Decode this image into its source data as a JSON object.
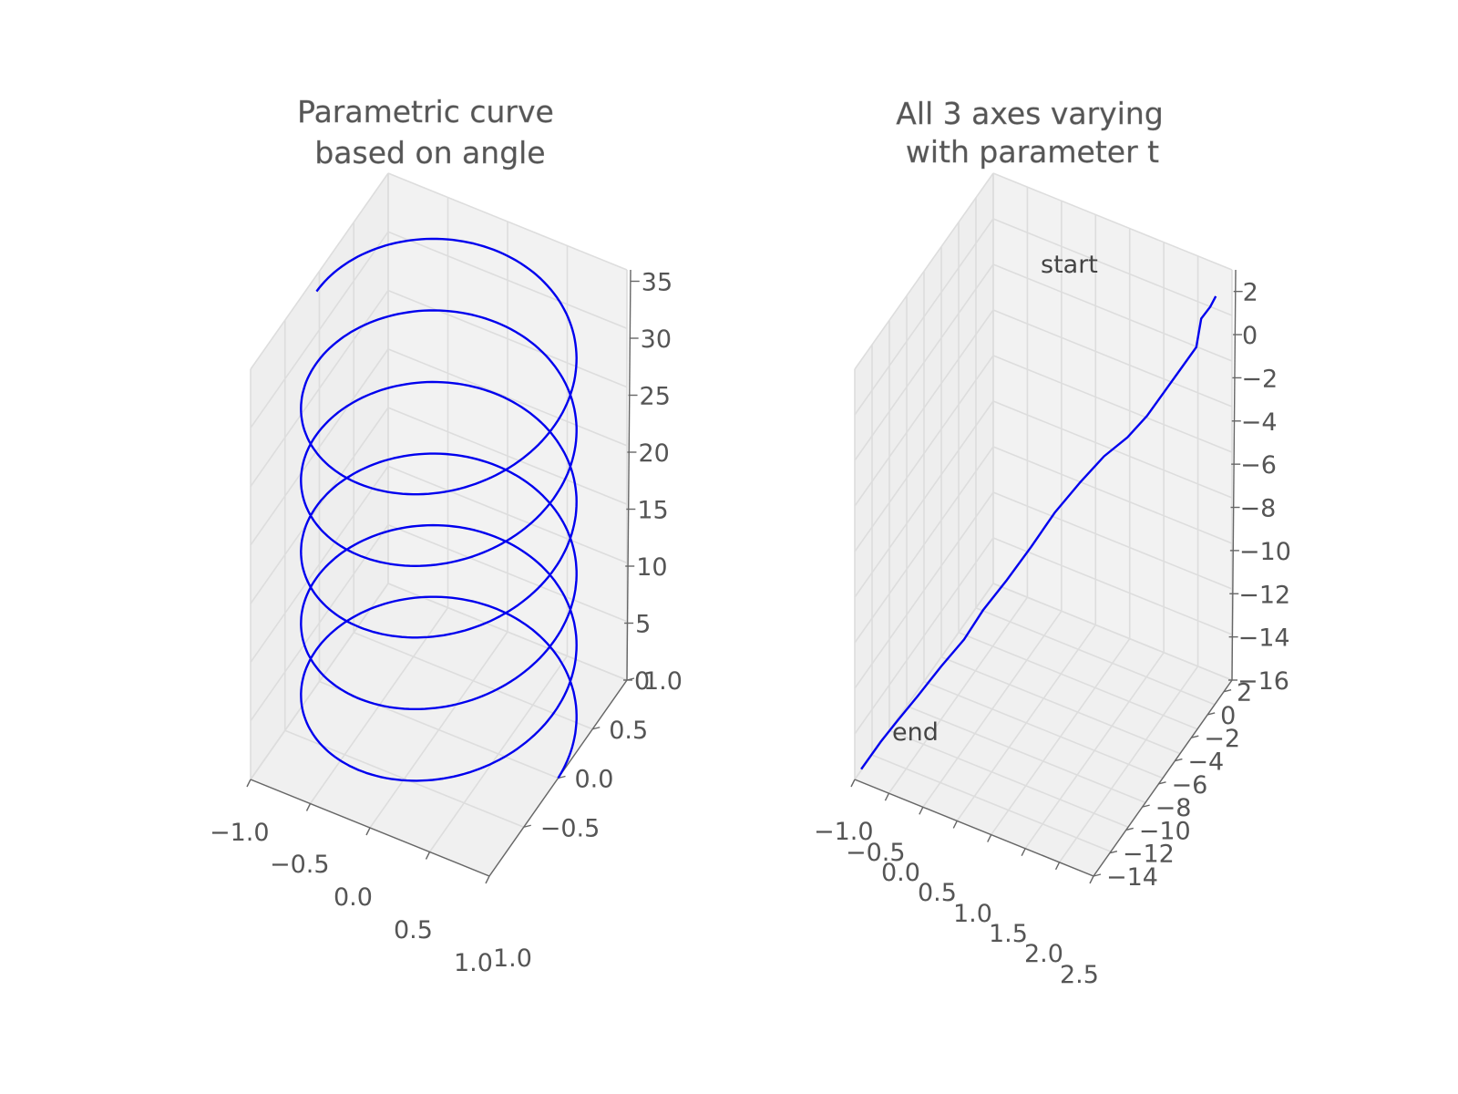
{
  "chart_data": [
    {
      "type": "line",
      "subtype": "3d",
      "title_lines": [
        "Parametric curve",
        "based on angle"
      ],
      "series": [
        {
          "color": "#0000ee",
          "parametric": {
            "x": "cos(theta)",
            "y": "sin(theta)",
            "z": "theta",
            "theta_range": [
              0,
              34.6
            ]
          }
        }
      ],
      "xlim": [
        -1.0,
        1.0
      ],
      "ylim": [
        -1.0,
        1.0
      ],
      "zlim": [
        0,
        36
      ],
      "x_ticks": [
        "−1.0",
        "−0.5",
        "0.0",
        "0.5",
        "1.0"
      ],
      "y_ticks": [
        "−0.5",
        "0.0",
        "0.5",
        "1.0"
      ],
      "y_tick_values": [
        -0.5,
        0.0,
        0.5,
        1.0
      ],
      "z_ticks": [
        "0",
        "5",
        "10",
        "15",
        "20",
        "25",
        "30",
        "35"
      ],
      "z_tick_values": [
        0,
        5,
        10,
        15,
        20,
        25,
        30,
        35
      ],
      "corner_label": "1.0",
      "pane_color": "#f2f2f2",
      "grid": true
    },
    {
      "type": "line",
      "subtype": "3d",
      "title_lines": [
        "All 3 axes varying",
        "with parameter t"
      ],
      "series": [
        {
          "color": "#0000ee",
          "x": [
            -0.9,
            -0.75,
            -0.6,
            -0.4,
            -0.15,
            0.1,
            0.3,
            0.55,
            0.8,
            1.05,
            1.3,
            1.55,
            1.8,
            2.0,
            2.15,
            2.3,
            2.45,
            2.45,
            2.45,
            2.55,
            2.6
          ],
          "y": [
            -14,
            -12.8,
            -11.9,
            -11.0,
            -10.1,
            -9.3,
            -8.5,
            -7.6,
            -6.6,
            -5.7,
            -4.6,
            -3.6,
            -2.7,
            -1.9,
            -1.0,
            -0.2,
            0.6,
            0.9,
            1.2,
            1.5,
            1.8
          ],
          "z": [
            -15.4,
            -14.6,
            -13.9,
            -13.0,
            -11.8,
            -10.7,
            -9.5,
            -8.3,
            -7.0,
            -5.6,
            -4.5,
            -3.5,
            -2.8,
            -2.0,
            -1.2,
            -0.4,
            0.4,
            0.9,
            1.4,
            1.9,
            2.3
          ]
        }
      ],
      "annotations": [
        {
          "text": "start"
        },
        {
          "text": "end"
        }
      ],
      "xlim": [
        -1.0,
        2.7
      ],
      "ylim": [
        -14,
        3
      ],
      "zlim": [
        -16,
        3
      ],
      "x_ticks": [
        "−1.0",
        "−0.5",
        "0.0",
        "0.5",
        "1.0",
        "1.5",
        "2.0",
        "2.5"
      ],
      "y_ticks": [
        "−14",
        "−12",
        "−10",
        "−8",
        "−6",
        "−4",
        "−2",
        "0",
        "2"
      ],
      "y_tick_values": [
        -14,
        -12,
        -10,
        -8,
        -6,
        -4,
        -2,
        0,
        2
      ],
      "z_ticks": [
        "−16",
        "−14",
        "−12",
        "−10",
        "−8",
        "−6",
        "−4",
        "−2",
        "0",
        "2"
      ],
      "z_tick_values": [
        -16,
        -14,
        -12,
        -10,
        -8,
        -6,
        -4,
        -2,
        0,
        2
      ],
      "pane_color": "#f2f2f2",
      "grid": true
    }
  ]
}
